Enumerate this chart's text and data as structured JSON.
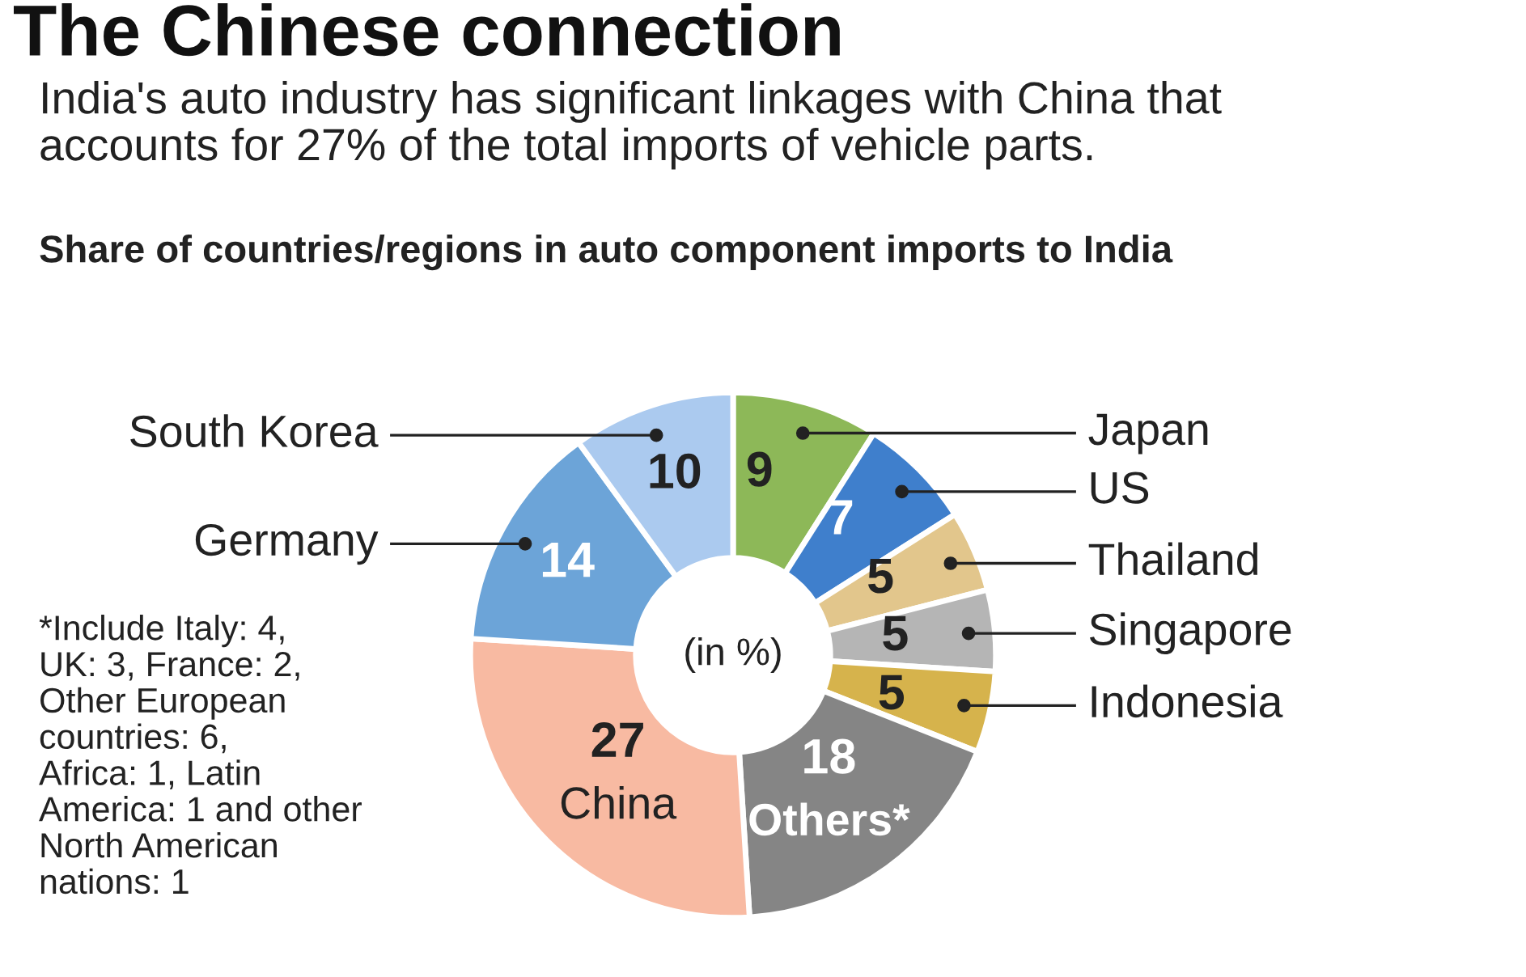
{
  "chart_data": {
    "type": "donut",
    "title": "The Chinese connection",
    "subtitle": "India's auto industry has significant linkages with China that\naccounts for 27% of the total imports of vehicle parts.",
    "categories": [
      "Japan",
      "US",
      "Thailand",
      "Singapore",
      "Indonesia",
      "Others*",
      "China",
      "Germany",
      "South Korea"
    ],
    "values": [
      9,
      7,
      5,
      5,
      5,
      18,
      27,
      14,
      10
    ],
    "colors": [
      "#8db858",
      "#3f7fcc",
      "#e2c68c",
      "#b5b5b5",
      "#d6b34c",
      "#858585",
      "#f8baa2",
      "#6ca4d8",
      "#abcaef"
    ],
    "data_labels": true,
    "annotations": [
      "Share of countries/regions in auto component imports to India",
      "(in %)",
      "*Include Italy: 4,\nUK: 3, France: 2,\nOther European\ncountries: 6,\nAfrica: 1, Latin\nAmerica: 1 and other\nNorth American\nnations: 1"
    ]
  }
}
